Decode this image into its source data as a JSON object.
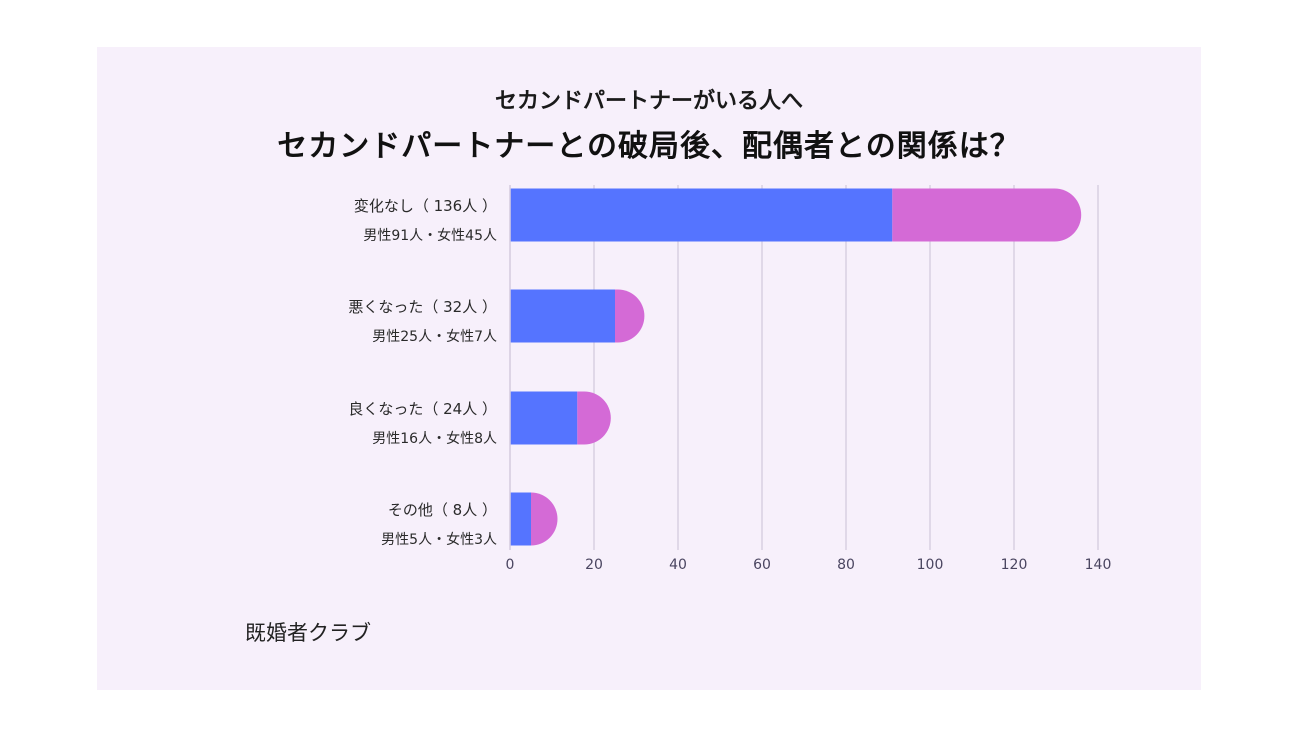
{
  "subtitle": "セカンドパートナーがいる人へ",
  "title": "セカンドパートナーとの破局後、配偶者との関係は？",
  "source": "既婚者クラブ",
  "colors": {
    "background": "#f7f0fb",
    "male": "#5574ff",
    "female": "#d46ad6"
  },
  "chart_data": {
    "type": "bar",
    "orientation": "horizontal",
    "stacked": true,
    "categories": [
      {
        "label": "変化なし（ 136人 ）",
        "sub": "男性91人・女性45人"
      },
      {
        "label": "悪くなった（ 32人 ）",
        "sub": "男性25人・女性7人"
      },
      {
        "label": "良くなった（ 24人 ）",
        "sub": "男性16人・女性8人"
      },
      {
        "label": "その他（ 8人 ）",
        "sub": "男性5人・女性3人"
      }
    ],
    "series": [
      {
        "values": [
          91,
          25,
          16,
          5
        ],
        "color": "#5574ff"
      },
      {
        "values": [
          45,
          7,
          8,
          3
        ],
        "color": "#d46ad6"
      }
    ],
    "xlim": [
      0,
      140
    ],
    "xticks": [
      "0",
      "20",
      "40",
      "60",
      "80",
      "100",
      "120",
      "140"
    ],
    "grid": true
  }
}
